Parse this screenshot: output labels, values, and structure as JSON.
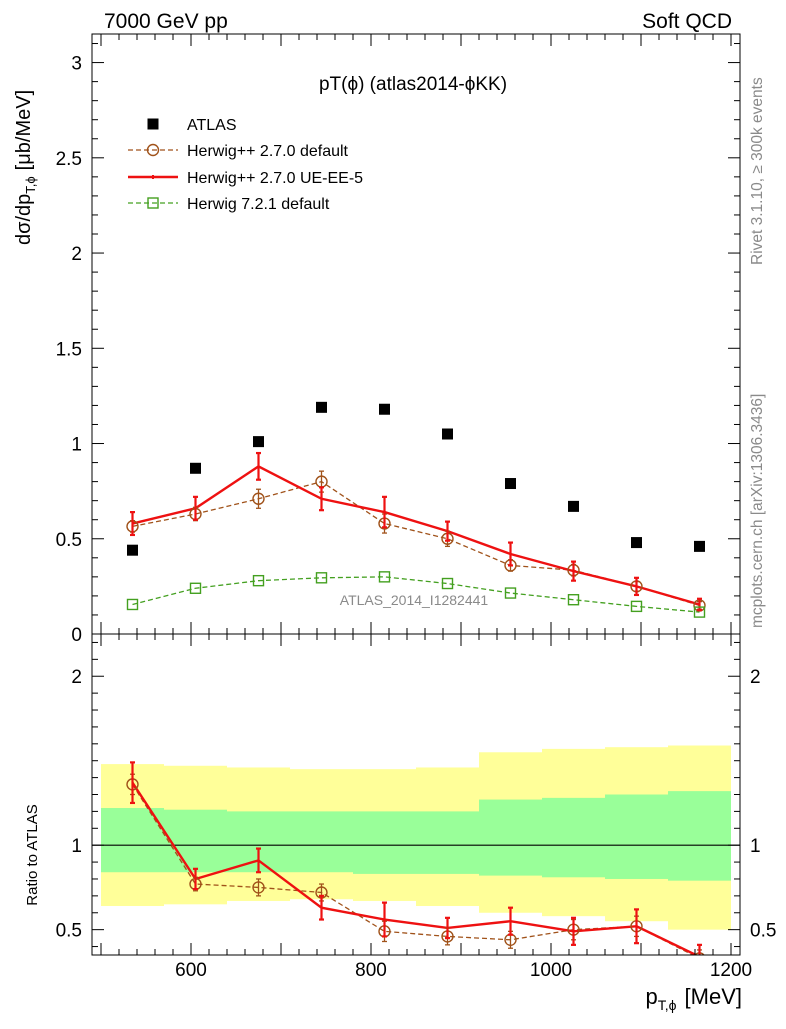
{
  "header": {
    "left": "7000 GeV pp",
    "right": "Soft QCD"
  },
  "side_text": {
    "top": "Rivet 3.1.10, ≥ 300k events",
    "bottom": "mcplots.cern.ch [arXiv:1306.3436]"
  },
  "colors": {
    "atlas": "#000000",
    "herwig270": "#a0521a",
    "ueee5": "#ee1111",
    "herwig721": "#44a020",
    "band_outer": "#ffff99",
    "band_inner": "#99ff99"
  },
  "chart_data": [
    {
      "type": "scatter",
      "title": "pT(ϕ) (atlas2014-ϕKK)",
      "watermark": "ATLAS_2014_I1282441",
      "ylabel": "dσ/dp",
      "ylabel_sub": "T,ϕ",
      "ylabel_unit": "[μb/MeV]",
      "ylim": [
        0,
        3.15
      ],
      "yticks": [
        "0",
        "0.5",
        "1",
        "1.5",
        "2",
        "2.5",
        "3"
      ],
      "xlim": [
        490,
        1210
      ],
      "x": [
        535,
        605,
        675,
        745,
        815,
        885,
        955,
        1025,
        1095,
        1165
      ],
      "legend": [
        {
          "label": "ATLAS",
          "series": "atlas"
        },
        {
          "label": "Herwig++ 2.7.0 default",
          "series": "herwig270"
        },
        {
          "label": "Herwig++ 2.7.0 UE-EE-5",
          "series": "ueee5"
        },
        {
          "label": "Herwig 7.2.1 default",
          "series": "herwig721"
        }
      ],
      "series": [
        {
          "key": "atlas",
          "name": "ATLAS",
          "values": [
            0.44,
            0.87,
            1.01,
            1.19,
            1.18,
            1.05,
            0.79,
            0.67,
            0.48,
            0.46
          ]
        },
        {
          "key": "herwig270",
          "name": "Herwig++ 2.7.0 default",
          "values": [
            0.565,
            0.63,
            0.71,
            0.8,
            0.58,
            0.5,
            0.36,
            0.335,
            0.25,
            0.15
          ],
          "errors": [
            0.03,
            0.035,
            0.05,
            0.055,
            0.05,
            0.04,
            0.03,
            0.03,
            0.025,
            0.02
          ]
        },
        {
          "key": "ueee5",
          "name": "Herwig++ 2.7.0 UE-EE-5",
          "values": [
            0.58,
            0.66,
            0.88,
            0.71,
            0.64,
            0.54,
            0.42,
            0.33,
            0.25,
            0.155
          ],
          "errors": [
            0.06,
            0.06,
            0.07,
            0.06,
            0.08,
            0.05,
            0.06,
            0.05,
            0.045,
            0.03
          ]
        },
        {
          "key": "herwig721",
          "name": "Herwig 7.2.1 default",
          "values": [
            0.155,
            0.24,
            0.28,
            0.295,
            0.3,
            0.265,
            0.215,
            0.18,
            0.145,
            0.115
          ]
        }
      ]
    },
    {
      "type": "line",
      "ylabel": "Ratio to ATLAS",
      "xlabel": "p",
      "xlabel_sub": "T,ϕ",
      "xlabel_unit": "[MeV]",
      "xlim": [
        490,
        1210
      ],
      "ylim": [
        0.35,
        2.25
      ],
      "yticks": [
        "0.5",
        "1",
        "2"
      ],
      "xticks": [
        "600",
        "800",
        "1000",
        "1200"
      ],
      "x": [
        535,
        605,
        675,
        745,
        815,
        885,
        955,
        1025,
        1095,
        1165
      ],
      "bin_edges": [
        500,
        570,
        640,
        710,
        780,
        850,
        920,
        990,
        1060,
        1130,
        1200
      ],
      "band_outer": {
        "lo": [
          0.64,
          0.65,
          0.67,
          0.68,
          0.67,
          0.64,
          0.6,
          0.58,
          0.55,
          0.5
        ],
        "hi": [
          1.48,
          1.47,
          1.46,
          1.45,
          1.45,
          1.46,
          1.55,
          1.57,
          1.58,
          1.59
        ]
      },
      "band_inner": {
        "lo": [
          0.84,
          0.84,
          0.84,
          0.84,
          0.83,
          0.83,
          0.82,
          0.81,
          0.8,
          0.79
        ],
        "hi": [
          1.22,
          1.21,
          1.2,
          1.2,
          1.2,
          1.2,
          1.27,
          1.28,
          1.3,
          1.32
        ]
      },
      "series": [
        {
          "key": "herwig270",
          "name": "Herwig++ 2.7.0 default",
          "values": [
            1.36,
            0.77,
            0.75,
            0.72,
            0.49,
            0.46,
            0.44,
            0.5,
            0.52,
            0.33
          ],
          "errors": [
            0.06,
            0.04,
            0.05,
            0.05,
            0.06,
            0.05,
            0.05,
            0.06,
            0.06,
            0.05
          ]
        },
        {
          "key": "ueee5",
          "name": "Herwig++ 2.7.0 UE-EE-5",
          "values": [
            1.37,
            0.8,
            0.91,
            0.63,
            0.56,
            0.51,
            0.55,
            0.49,
            0.52,
            0.34
          ],
          "errors": [
            0.12,
            0.06,
            0.07,
            0.07,
            0.1,
            0.06,
            0.08,
            0.08,
            0.1,
            0.07
          ]
        }
      ]
    }
  ]
}
